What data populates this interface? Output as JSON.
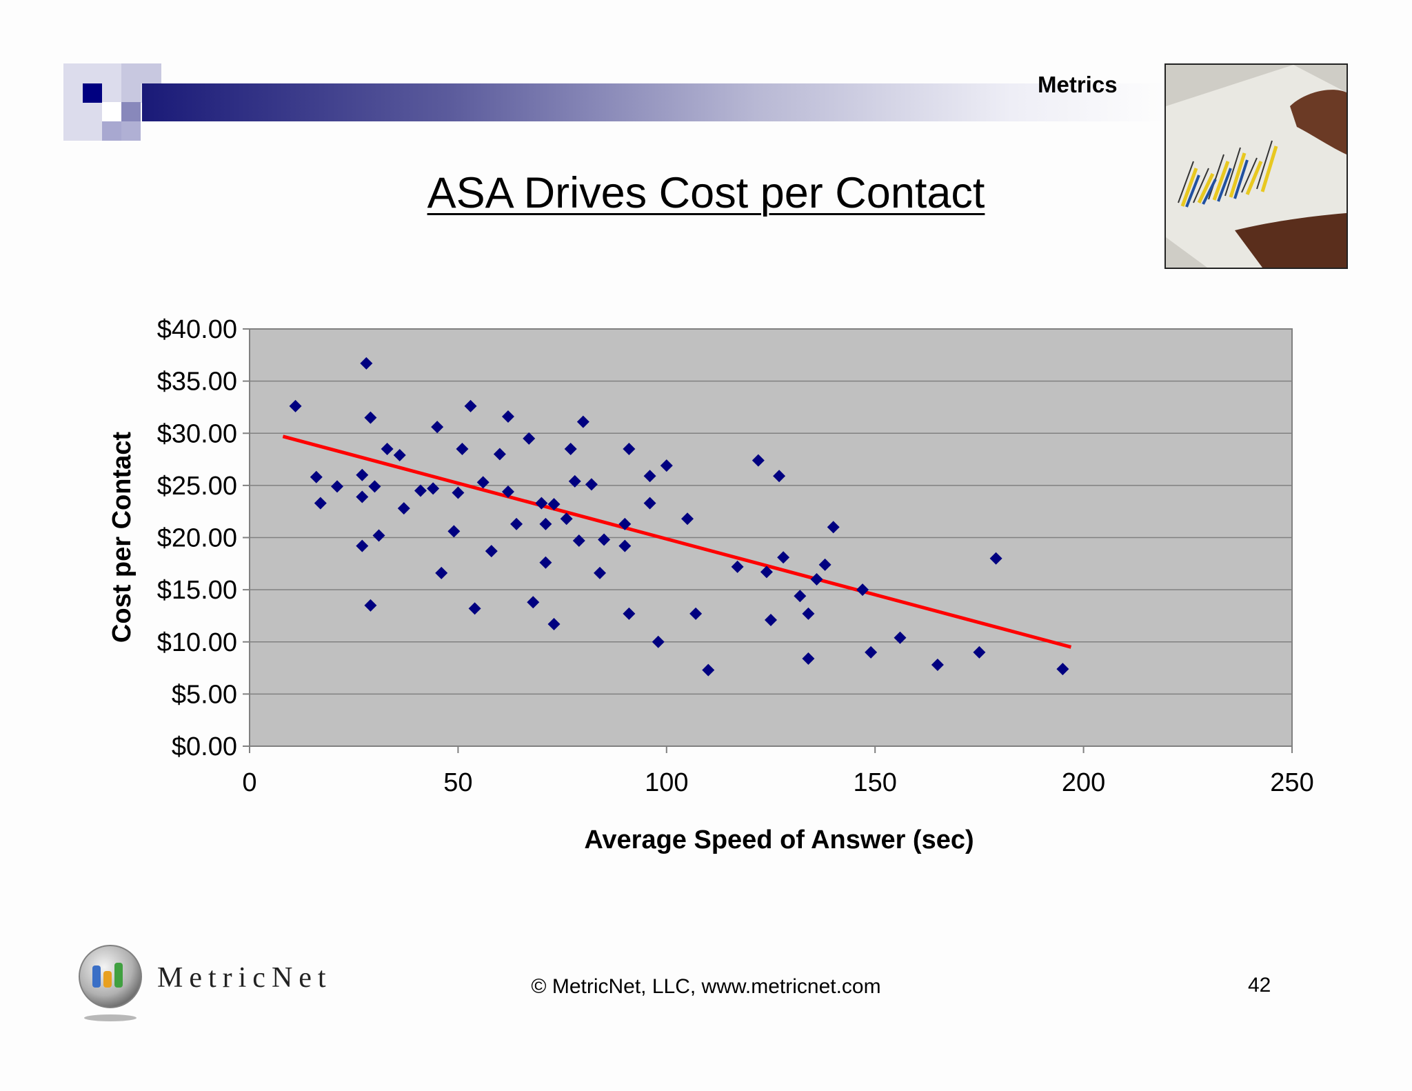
{
  "header": {
    "section_label": "Metrics"
  },
  "title": "ASA Drives Cost per Contact",
  "chart_data": {
    "type": "scatter",
    "title": "ASA Drives Cost per Contact",
    "xlabel": "Average Speed of Answer (sec)",
    "ylabel": "Cost per Contact",
    "xlim": [
      0,
      250
    ],
    "ylim": [
      0,
      40
    ],
    "x_ticks": [
      0,
      50,
      100,
      150,
      200,
      250
    ],
    "y_ticks": [
      0,
      5,
      10,
      15,
      20,
      25,
      30,
      35,
      40
    ],
    "y_tick_labels": [
      "$0.00",
      "$5.00",
      "$10.00",
      "$15.00",
      "$20.00",
      "$25.00",
      "$30.00",
      "$35.00",
      "$40.00"
    ],
    "grid": true,
    "plot_background": "#c0c0c0",
    "marker_color": "#000080",
    "trendline_color": "#ff0000",
    "series": [
      {
        "name": "Cost per Contact",
        "points": [
          [
            11,
            32.6
          ],
          [
            28,
            36.7
          ],
          [
            29,
            31.5
          ],
          [
            53,
            32.6
          ],
          [
            62,
            31.6
          ],
          [
            80,
            31.1
          ],
          [
            45,
            30.6
          ],
          [
            67,
            29.5
          ],
          [
            33,
            28.5
          ],
          [
            36,
            27.9
          ],
          [
            51,
            28.5
          ],
          [
            60,
            28.0
          ],
          [
            77,
            28.5
          ],
          [
            91,
            28.5
          ],
          [
            16,
            25.8
          ],
          [
            17,
            23.3
          ],
          [
            21,
            24.9
          ],
          [
            27,
            26.0
          ],
          [
            27,
            23.9
          ],
          [
            30,
            24.9
          ],
          [
            37,
            22.8
          ],
          [
            41,
            24.5
          ],
          [
            44,
            24.7
          ],
          [
            50,
            24.3
          ],
          [
            56,
            25.3
          ],
          [
            62,
            24.4
          ],
          [
            64,
            21.3
          ],
          [
            70,
            23.3
          ],
          [
            71,
            21.3
          ],
          [
            73,
            23.2
          ],
          [
            76,
            21.8
          ],
          [
            78,
            25.4
          ],
          [
            82,
            25.1
          ],
          [
            90,
            21.3
          ],
          [
            96,
            25.9
          ],
          [
            96,
            23.3
          ],
          [
            100,
            26.9
          ],
          [
            105,
            21.8
          ],
          [
            27,
            19.2
          ],
          [
            31,
            20.2
          ],
          [
            49,
            20.6
          ],
          [
            58,
            18.7
          ],
          [
            71,
            17.6
          ],
          [
            79,
            19.7
          ],
          [
            85,
            19.8
          ],
          [
            90,
            19.2
          ],
          [
            46,
            16.6
          ],
          [
            84,
            16.6
          ],
          [
            29,
            13.5
          ],
          [
            54,
            13.2
          ],
          [
            68,
            13.8
          ],
          [
            73,
            11.7
          ],
          [
            91,
            12.7
          ],
          [
            98,
            10.0
          ],
          [
            107,
            12.7
          ],
          [
            110,
            7.3
          ],
          [
            117,
            17.2
          ],
          [
            122,
            27.4
          ],
          [
            124,
            16.7
          ],
          [
            125,
            12.1
          ],
          [
            127,
            25.9
          ],
          [
            128,
            18.1
          ],
          [
            132,
            14.4
          ],
          [
            134,
            12.7
          ],
          [
            134,
            8.4
          ],
          [
            136,
            16.0
          ],
          [
            138,
            17.4
          ],
          [
            140,
            21.0
          ],
          [
            147,
            15.0
          ],
          [
            149,
            9.0
          ],
          [
            156,
            10.4
          ],
          [
            165,
            7.8
          ],
          [
            175,
            9.0
          ],
          [
            179,
            18.0
          ],
          [
            195,
            7.4
          ]
        ]
      }
    ],
    "trendline": {
      "x": [
        8,
        197
      ],
      "y": [
        29.7,
        9.5
      ]
    }
  },
  "footer": {
    "logo_text": "MetricNet",
    "copyright": "© MetricNet, LLC, www.metricnet.com",
    "page_number": "42"
  }
}
